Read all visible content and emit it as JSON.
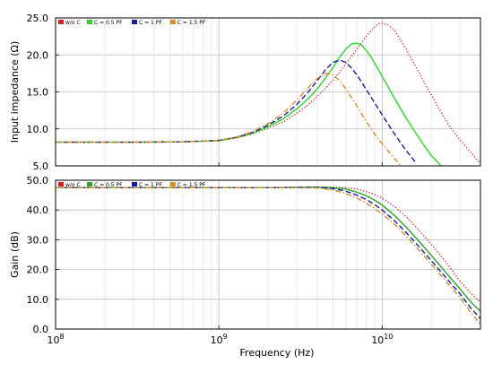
{
  "chart_data": [
    {
      "type": "line",
      "xlabel": "",
      "ylabel": "Input impedance (Ω)",
      "xscale": "log",
      "xlim": [
        100000000.0,
        40000000000.0
      ],
      "ylim": [
        5,
        25
      ],
      "yticks": [
        "5.0",
        "10.0",
        "15.0",
        "20.0",
        "25.0"
      ],
      "xtick_labels_shown": false,
      "grid": true,
      "legend_position": "top-left",
      "x": [
        100000000.0,
        300000000.0,
        600000000.0,
        1000000000.0,
        1300000000.0,
        1600000000.0,
        2000000000.0,
        2500000000.0,
        3000000000.0,
        3500000000.0,
        4000000000.0,
        4500000000.0,
        5000000000.0,
        5500000000.0,
        6000000000.0,
        6500000000.0,
        7000000000.0,
        7500000000.0,
        8000000000.0,
        8500000000.0,
        9000000000.0,
        9500000000.0,
        10000000000.0,
        11000000000.0,
        12000000000.0,
        13000000000.0,
        14000000000.0,
        16000000000.0,
        18000000000.0,
        20000000000.0,
        23000000000.0,
        26000000000.0,
        30000000000.0,
        35000000000.0,
        40000000000.0
      ],
      "series": [
        {
          "name": "w/o C",
          "color": "#e31a1c",
          "dash": "dotted",
          "values": [
            8.2,
            8.2,
            8.25,
            8.4,
            8.8,
            9.3,
            10.1,
            11.0,
            12.1,
            13.2,
            14.4,
            15.5,
            16.6,
            17.7,
            18.8,
            19.8,
            20.8,
            21.7,
            22.5,
            23.2,
            23.8,
            24.2,
            24.3,
            24.0,
            23.2,
            22.0,
            20.8,
            18.5,
            16.4,
            14.6,
            12.2,
            10.3,
            8.5,
            6.8,
            5.3
          ]
        },
        {
          "name": "C = 0.5 PF",
          "color": "#22dd22",
          "dash": "solid",
          "values": [
            8.2,
            8.2,
            8.25,
            8.4,
            8.85,
            9.4,
            10.3,
            11.4,
            12.7,
            14.0,
            15.4,
            16.9,
            18.3,
            19.7,
            20.8,
            21.5,
            21.6,
            21.3,
            20.6,
            19.8,
            18.9,
            18.0,
            17.1,
            15.5,
            14.0,
            12.7,
            11.5,
            9.5,
            7.8,
            6.4,
            5.0,
            null,
            null,
            null,
            null
          ]
        },
        {
          "name": "C = 1 PF",
          "color": "#1a1aa8",
          "dash": "dashed",
          "values": [
            8.2,
            8.2,
            8.25,
            8.45,
            8.9,
            9.5,
            10.5,
            11.8,
            13.3,
            14.9,
            16.5,
            18.0,
            19.0,
            19.3,
            19.0,
            18.2,
            17.3,
            16.3,
            15.3,
            14.4,
            13.5,
            12.7,
            11.9,
            10.5,
            9.2,
            8.1,
            7.1,
            5.5,
            null,
            null,
            null,
            null,
            null,
            null,
            null
          ]
        },
        {
          "name": "C = 1.5 PF",
          "color": "#e08a1a",
          "dash": "dashdot",
          "values": [
            8.2,
            8.2,
            8.25,
            8.45,
            8.95,
            9.6,
            10.7,
            12.2,
            13.9,
            15.5,
            16.8,
            17.5,
            17.3,
            16.5,
            15.4,
            14.2,
            13.1,
            12.0,
            11.0,
            10.1,
            9.3,
            8.6,
            8.0,
            6.9,
            5.9,
            5.0,
            null,
            null,
            null,
            null,
            null,
            null,
            null,
            null,
            null
          ]
        }
      ]
    },
    {
      "type": "line",
      "xlabel": "Frequency  (Hz)",
      "ylabel": "Gain (dB)",
      "xscale": "log",
      "xlim": [
        100000000.0,
        40000000000.0
      ],
      "ylim": [
        0,
        50
      ],
      "yticks": [
        "0.0",
        "10.0",
        "20.0",
        "30.0",
        "40.0",
        "50.0"
      ],
      "xtick_labels": [
        "10^8",
        "10^9",
        "10^10"
      ],
      "grid": true,
      "legend_position": "top-left",
      "x": [
        100000000.0,
        300000000.0,
        1000000000.0,
        2000000000.0,
        3000000000.0,
        4000000000.0,
        5000000000.0,
        6000000000.0,
        7000000000.0,
        8000000000.0,
        9000000000.0,
        10000000000.0,
        12000000000.0,
        14000000000.0,
        16000000000.0,
        20000000000.0,
        25000000000.0,
        30000000000.0,
        35000000000.0,
        40000000000.0
      ],
      "series": [
        {
          "name": "w/o C",
          "color": "#e31a1c",
          "dash": "dotted",
          "values": [
            47.5,
            47.5,
            47.5,
            47.5,
            47.6,
            47.7,
            47.7,
            47.5,
            47.0,
            46.2,
            45.2,
            44.0,
            41.0,
            37.8,
            34.5,
            28.5,
            22.0,
            16.0,
            12.0,
            9.0
          ]
        },
        {
          "name": "C = 0.5 PF",
          "color": "#22aa22",
          "dash": "solid",
          "values": [
            47.5,
            47.5,
            47.5,
            47.5,
            47.6,
            47.7,
            47.5,
            47.0,
            46.0,
            44.8,
            43.3,
            41.7,
            38.0,
            34.3,
            30.8,
            24.8,
            18.5,
            13.5,
            9.0,
            6.0
          ]
        },
        {
          "name": "C = 1 PF",
          "color": "#1a1aa8",
          "dash": "dashed",
          "values": [
            47.5,
            47.5,
            47.5,
            47.5,
            47.6,
            47.6,
            47.2,
            46.3,
            45.0,
            43.5,
            41.8,
            40.0,
            36.2,
            32.5,
            29.0,
            23.0,
            16.8,
            11.8,
            7.0,
            3.5
          ]
        },
        {
          "name": "C = 1.5 PF",
          "color": "#d09020",
          "dash": "dashdot",
          "values": [
            47.5,
            47.5,
            47.5,
            47.5,
            47.5,
            47.4,
            46.7,
            45.5,
            44.0,
            42.3,
            40.5,
            38.7,
            35.0,
            31.3,
            27.8,
            21.8,
            15.6,
            10.6,
            5.5,
            1.5
          ]
        }
      ]
    }
  ]
}
